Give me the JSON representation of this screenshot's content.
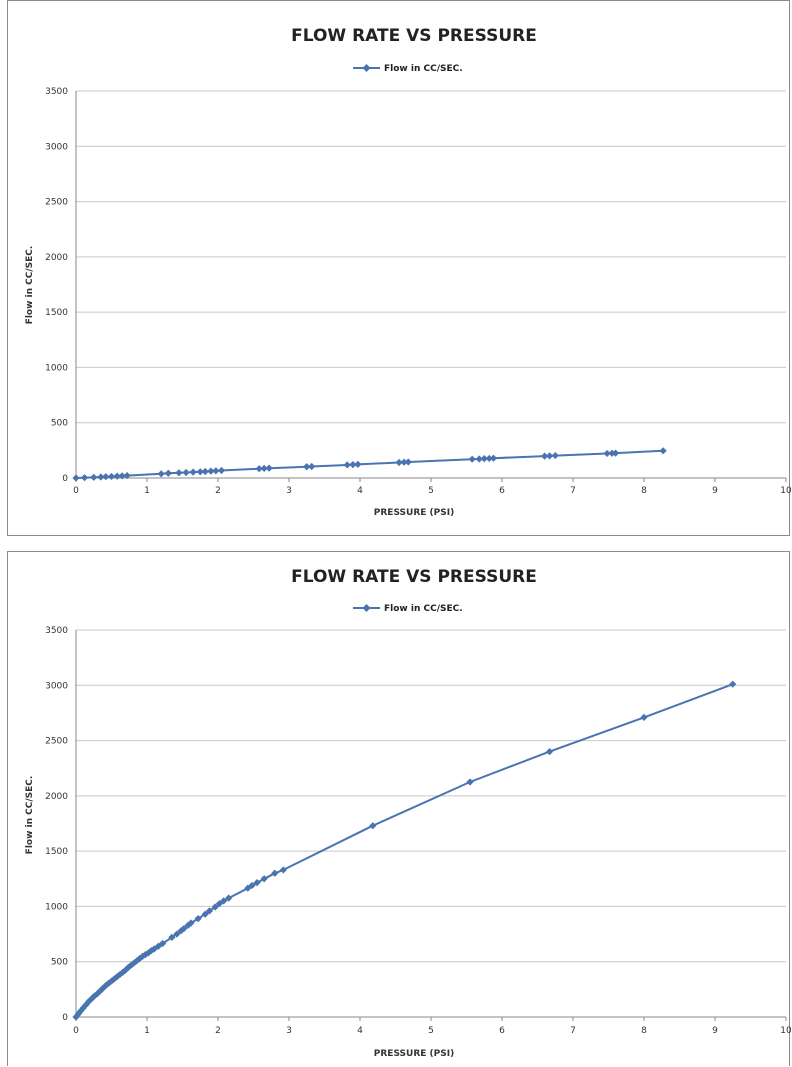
{
  "chart_data": [
    {
      "type": "line",
      "title": "FLOW RATE VS PRESSURE",
      "xlabel": "PRESSURE (PSI)",
      "ylabel": "Flow in CC/SEC.",
      "xlim": [
        0,
        10
      ],
      "ylim": [
        0,
        3500
      ],
      "xticks": [
        "0",
        "1",
        "2",
        "3",
        "4",
        "5",
        "6",
        "7",
        "8",
        "9",
        "10"
      ],
      "yticks": [
        "0",
        "500",
        "1000",
        "1500",
        "2000",
        "2500",
        "3000",
        "3500"
      ],
      "grid": "horizontal",
      "legend": "top-center",
      "series_color": "#4a74b0",
      "series": [
        {
          "name": "Flow in CC/SEC.",
          "marker": "diamond",
          "x": [
            0.0,
            0.12,
            0.25,
            0.35,
            0.42,
            0.5,
            0.58,
            0.65,
            0.72,
            1.2,
            1.3,
            1.45,
            1.55,
            1.65,
            1.75,
            1.82,
            1.9,
            1.97,
            2.05,
            2.58,
            2.65,
            2.72,
            3.25,
            3.32,
            3.82,
            3.9,
            3.97,
            4.55,
            4.62,
            4.68,
            5.58,
            5.68,
            5.75,
            5.82,
            5.88,
            6.6,
            6.67,
            6.75,
            7.48,
            7.55,
            7.6,
            8.27
          ],
          "y": [
            0,
            3,
            6,
            9,
            12,
            14,
            17,
            19,
            22,
            38,
            43,
            47,
            50,
            53,
            56,
            59,
            62,
            65,
            68,
            84,
            87,
            89,
            102,
            104,
            118,
            121,
            123,
            140,
            143,
            145,
            170,
            172,
            175,
            177,
            179,
            198,
            200,
            203,
            222,
            224,
            225,
            246
          ]
        }
      ]
    },
    {
      "type": "line",
      "title": "FLOW RATE VS PRESSURE",
      "xlabel": "PRESSURE (PSI)",
      "ylabel": "Flow in CC/SEC.",
      "xlim": [
        0,
        10
      ],
      "ylim": [
        0,
        3500
      ],
      "xticks": [
        "0",
        "1",
        "2",
        "3",
        "4",
        "5",
        "6",
        "7",
        "8",
        "9",
        "10"
      ],
      "yticks": [
        "0",
        "500",
        "1000",
        "1500",
        "2000",
        "2500",
        "3000",
        "3500"
      ],
      "grid": "horizontal",
      "legend": "top-center",
      "series_color": "#4a74b0",
      "series": [
        {
          "name": "Flow in CC/SEC.",
          "marker": "diamond",
          "x": [
            0.0,
            0.03,
            0.06,
            0.1,
            0.14,
            0.18,
            0.22,
            0.26,
            0.3,
            0.34,
            0.38,
            0.42,
            0.46,
            0.5,
            0.54,
            0.58,
            0.62,
            0.66,
            0.7,
            0.74,
            0.78,
            0.82,
            0.86,
            0.9,
            0.94,
            0.98,
            1.02,
            1.06,
            1.1,
            1.16,
            1.22,
            1.35,
            1.42,
            1.48,
            1.52,
            1.58,
            1.62,
            1.72,
            1.82,
            1.88,
            1.96,
            2.02,
            2.08,
            2.15,
            2.42,
            2.48,
            2.55,
            2.65,
            2.8,
            2.92,
            4.18,
            5.55,
            6.67,
            8.0,
            9.25
          ],
          "y": [
            0,
            25,
            50,
            80,
            110,
            140,
            165,
            190,
            210,
            235,
            260,
            285,
            305,
            325,
            345,
            365,
            385,
            405,
            425,
            450,
            470,
            490,
            510,
            530,
            550,
            565,
            580,
            600,
            615,
            640,
            665,
            720,
            750,
            780,
            800,
            830,
            850,
            890,
            930,
            960,
            995,
            1025,
            1050,
            1075,
            1165,
            1190,
            1215,
            1250,
            1300,
            1330,
            1730,
            2125,
            2400,
            2710,
            3010
          ]
        }
      ]
    }
  ]
}
